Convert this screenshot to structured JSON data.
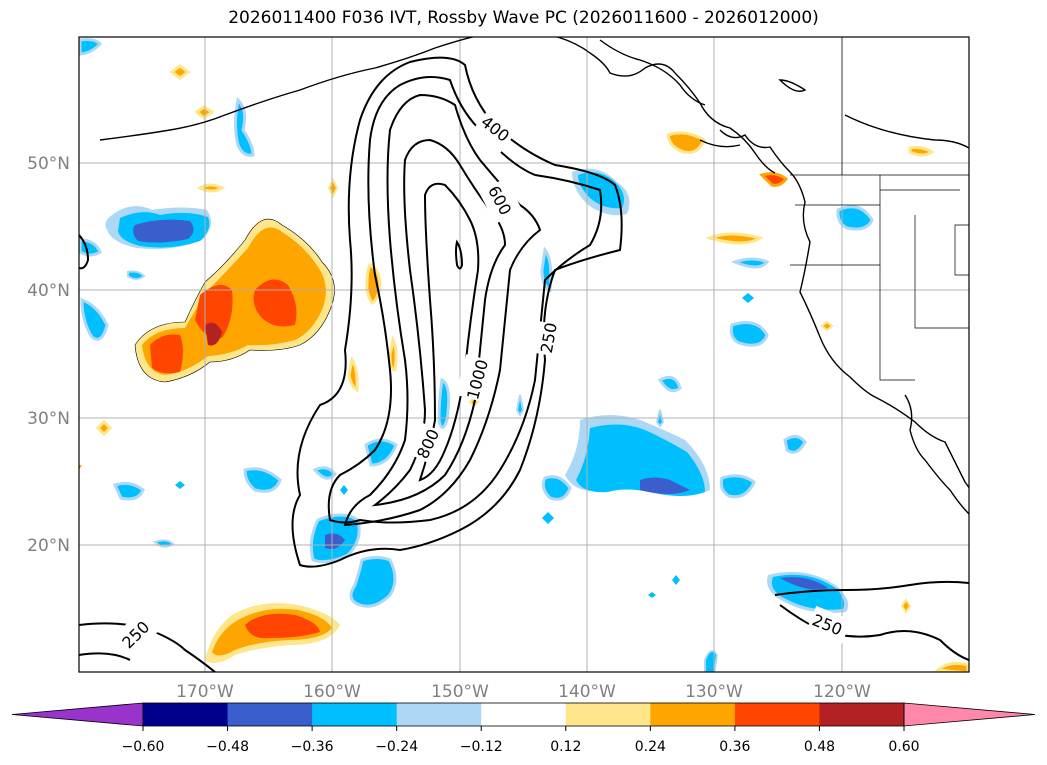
{
  "title": "2026011400 F036 IVT, Rossby Wave PC (2026011600 - 2026012000)",
  "map": {
    "lon_ticks": [
      "170°W",
      "160°W",
      "150°W",
      "140°W",
      "130°W",
      "120°W"
    ],
    "lat_ticks": [
      "50°N",
      "40°N",
      "30°N",
      "20°N"
    ],
    "contour_labels": [
      "400",
      "600",
      "1000",
      "800",
      "250",
      "250",
      "250"
    ]
  },
  "colorbar": {
    "ticks": [
      "−0.60",
      "−0.48",
      "−0.36",
      "−0.24",
      "−0.12",
      "0.12",
      "0.24",
      "0.36",
      "0.48",
      "0.60"
    ],
    "colors": [
      "#9933cc",
      "#00008b",
      "#3a5fcd",
      "#00bfff",
      "#add8f5",
      "#ffffff",
      "#ffe68a",
      "#ffa500",
      "#ff4500",
      "#b22222",
      "#ff88aa"
    ]
  }
}
